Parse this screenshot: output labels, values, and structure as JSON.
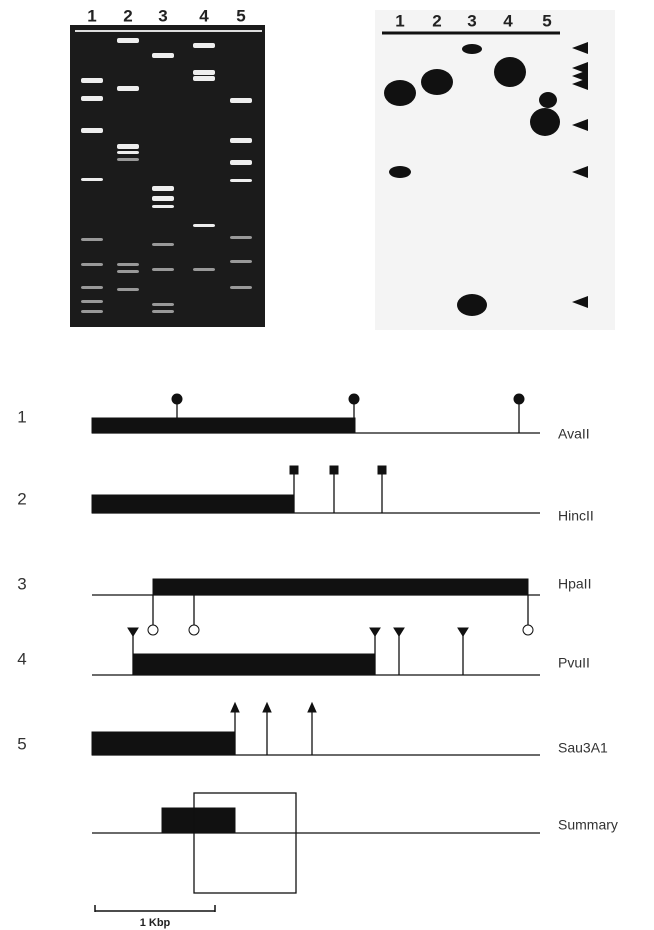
{
  "gel": {
    "lanes": [
      "1",
      "2",
      "3",
      "4",
      "5"
    ]
  },
  "blot": {
    "lanes": [
      "1",
      "2",
      "3",
      "4",
      "5"
    ]
  },
  "map": {
    "rows": [
      {
        "number": "1",
        "enzyme": "AvaII"
      },
      {
        "number": "2",
        "enzyme": "HincII"
      },
      {
        "number": "3",
        "enzyme": "HpaII"
      },
      {
        "number": "4",
        "enzyme": "PvuII"
      },
      {
        "number": "5",
        "enzyme": "Sau3A1"
      }
    ],
    "summary": "Summary",
    "scale_bar": "1 Kbp"
  }
}
